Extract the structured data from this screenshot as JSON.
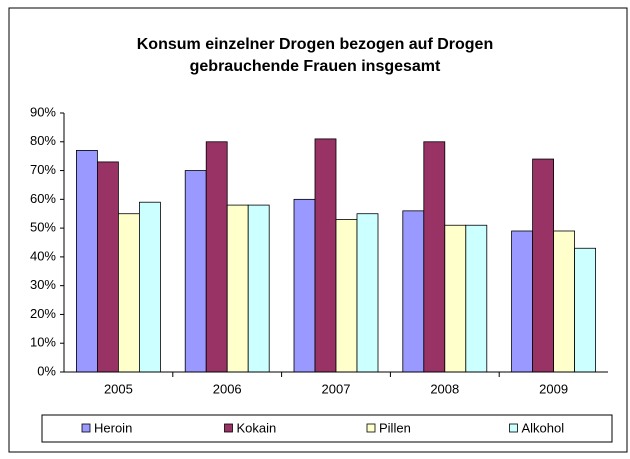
{
  "chart_data": {
    "type": "bar",
    "title": [
      "Konsum einzelner Drogen bezogen auf Drogen",
      "gebrauchende Frauen insgesamt"
    ],
    "categories": [
      "2005",
      "2006",
      "2007",
      "2008",
      "2009"
    ],
    "series": [
      {
        "name": "Heroin",
        "color": "#9999ff",
        "values": [
          77,
          70,
          60,
          56,
          49
        ]
      },
      {
        "name": "Kokain",
        "color": "#993366",
        "values": [
          73,
          80,
          81,
          80,
          74
        ]
      },
      {
        "name": "Pillen",
        "color": "#ffffcc",
        "values": [
          55,
          58,
          53,
          51,
          49
        ]
      },
      {
        "name": "Alkohol",
        "color": "#ccffff",
        "values": [
          59,
          58,
          55,
          51,
          43
        ]
      }
    ],
    "ylim": [
      0,
      90
    ],
    "yticks": [
      {
        "value": 0,
        "label": "0%"
      },
      {
        "value": 10,
        "label": "10%"
      },
      {
        "value": 20,
        "label": "20%"
      },
      {
        "value": 30,
        "label": "30%"
      },
      {
        "value": 40,
        "label": "40%"
      },
      {
        "value": 50,
        "label": "50%"
      },
      {
        "value": 60,
        "label": "60%"
      },
      {
        "value": 70,
        "label": "70%"
      },
      {
        "value": 80,
        "label": "80%"
      },
      {
        "value": 90,
        "label": "90%"
      }
    ],
    "grid": false,
    "legend": "bottom"
  }
}
